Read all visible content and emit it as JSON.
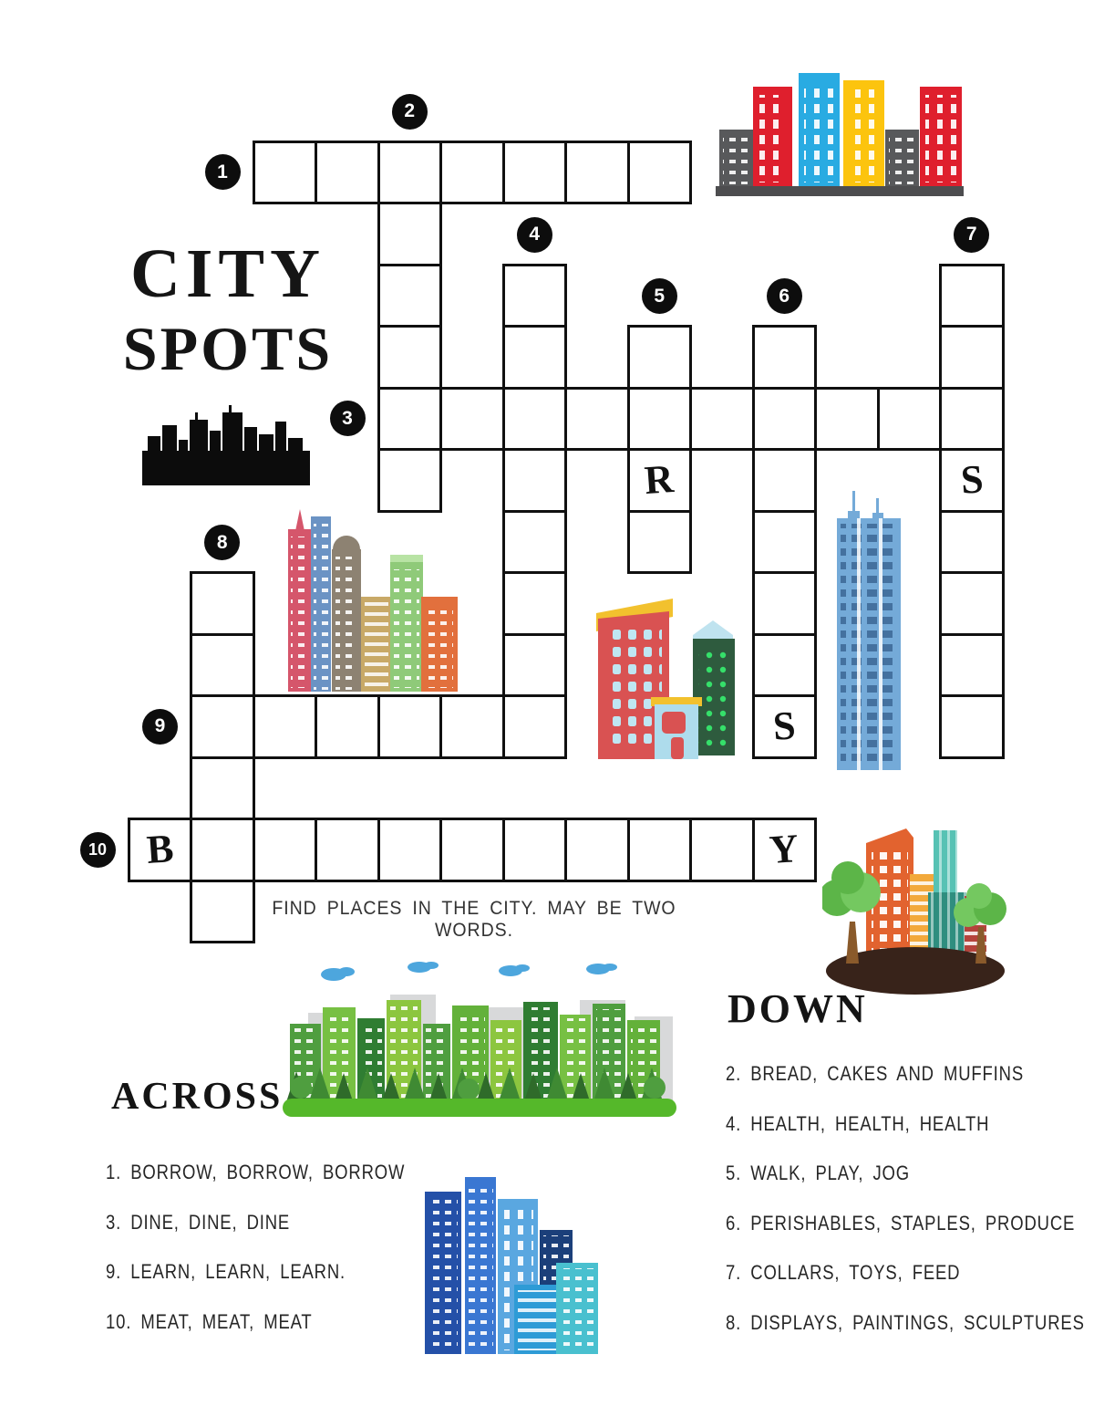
{
  "title": {
    "line1": "CITY",
    "line2": "SPOTS"
  },
  "instruction": "FIND PLACES IN THE CITY. MAY BE TWO WORDS.",
  "across": {
    "heading": "ACROSS",
    "clues": [
      "1. BORROW, BORROW, BORROW",
      "3. DINE, DINE, DINE",
      "9. LEARN, LEARN, LEARN.",
      "10. MEAT, MEAT, MEAT"
    ]
  },
  "down": {
    "heading": "DOWN",
    "clues": [
      "2. BREAD, CAKES AND MUFFINS",
      "4. HEALTH, HEALTH, HEALTH",
      "5. WALK, PLAY, JOG",
      "6. PERISHABLES, STAPLES, PRODUCE",
      "7. COLLARS, TOYS, FEED",
      "8. DISPLAYS, PAINTINGS, SCULPTURES"
    ]
  },
  "grid": {
    "rows": [
      {
        "r": 0,
        "cols": [
          2,
          3,
          4,
          5,
          6,
          7,
          8
        ]
      },
      {
        "r": 1,
        "cols": [
          4
        ]
      },
      {
        "r": 2,
        "cols": [
          4,
          6,
          13
        ]
      },
      {
        "r": 3,
        "cols": [
          4,
          6,
          8,
          10,
          13
        ]
      },
      {
        "r": 4,
        "cols": [
          4,
          5,
          6,
          7,
          8,
          9,
          10,
          11,
          12,
          13
        ]
      },
      {
        "r": 5,
        "cols": [
          4,
          6,
          8,
          10,
          13
        ]
      },
      {
        "r": 6,
        "cols": [
          6,
          8,
          10,
          13
        ]
      },
      {
        "r": 7,
        "cols": [
          1,
          6,
          10,
          13
        ]
      },
      {
        "r": 8,
        "cols": [
          1,
          6,
          10,
          13
        ]
      },
      {
        "r": 9,
        "cols": [
          1,
          2,
          3,
          4,
          5,
          6,
          10,
          13
        ]
      },
      {
        "r": 10,
        "cols": [
          1
        ]
      },
      {
        "r": 11,
        "cols": [
          0,
          1,
          2,
          3,
          4,
          5,
          6,
          7,
          8,
          9,
          10
        ]
      },
      {
        "r": 12,
        "cols": [
          1
        ]
      }
    ],
    "prefilled": [
      {
        "r": 5,
        "c": 8,
        "letter": "R"
      },
      {
        "r": 5,
        "c": 13,
        "letter": "S"
      },
      {
        "r": 9,
        "c": 10,
        "letter": "S"
      },
      {
        "r": 11,
        "c": 0,
        "letter": "B"
      },
      {
        "r": 11,
        "c": 10,
        "letter": "Y"
      }
    ],
    "badges": [
      {
        "label": "1",
        "r": 0,
        "c": 2,
        "side": "left"
      },
      {
        "label": "2",
        "r": 0,
        "c": 4,
        "side": "top"
      },
      {
        "label": "3",
        "r": 4,
        "c": 4,
        "side": "left"
      },
      {
        "label": "4",
        "r": 2,
        "c": 6,
        "side": "top"
      },
      {
        "label": "5",
        "r": 3,
        "c": 8,
        "side": "top"
      },
      {
        "label": "6",
        "r": 3,
        "c": 10,
        "side": "top"
      },
      {
        "label": "7",
        "r": 2,
        "c": 13,
        "side": "top"
      },
      {
        "label": "8",
        "r": 7,
        "c": 1,
        "side": "top"
      },
      {
        "label": "9",
        "r": 9,
        "c": 1,
        "side": "left"
      },
      {
        "label": "10",
        "r": 11,
        "c": 0,
        "side": "left"
      }
    ]
  },
  "illustrations": [
    "city-buildings-top-right",
    "title-skyline-silhouette",
    "city-cluster-mid-left",
    "city-cluster-mid-right",
    "blue-skyscraper",
    "park-buildings-bottom-right",
    "green-skyline-with-trees",
    "blue-city-cluster"
  ],
  "colors": {
    "grid_line": "#101010",
    "badge_bg": "#0d0d0d",
    "badge_text": "#ffffff",
    "text": "#262626",
    "red": "#df1f2d",
    "blue": "#29abe2",
    "yellow": "#fcc40e",
    "gray": "#58595b",
    "teal": "#35a08f",
    "orange": "#e8622d",
    "green": "#6abf45",
    "dark_brown": "#38231a"
  }
}
